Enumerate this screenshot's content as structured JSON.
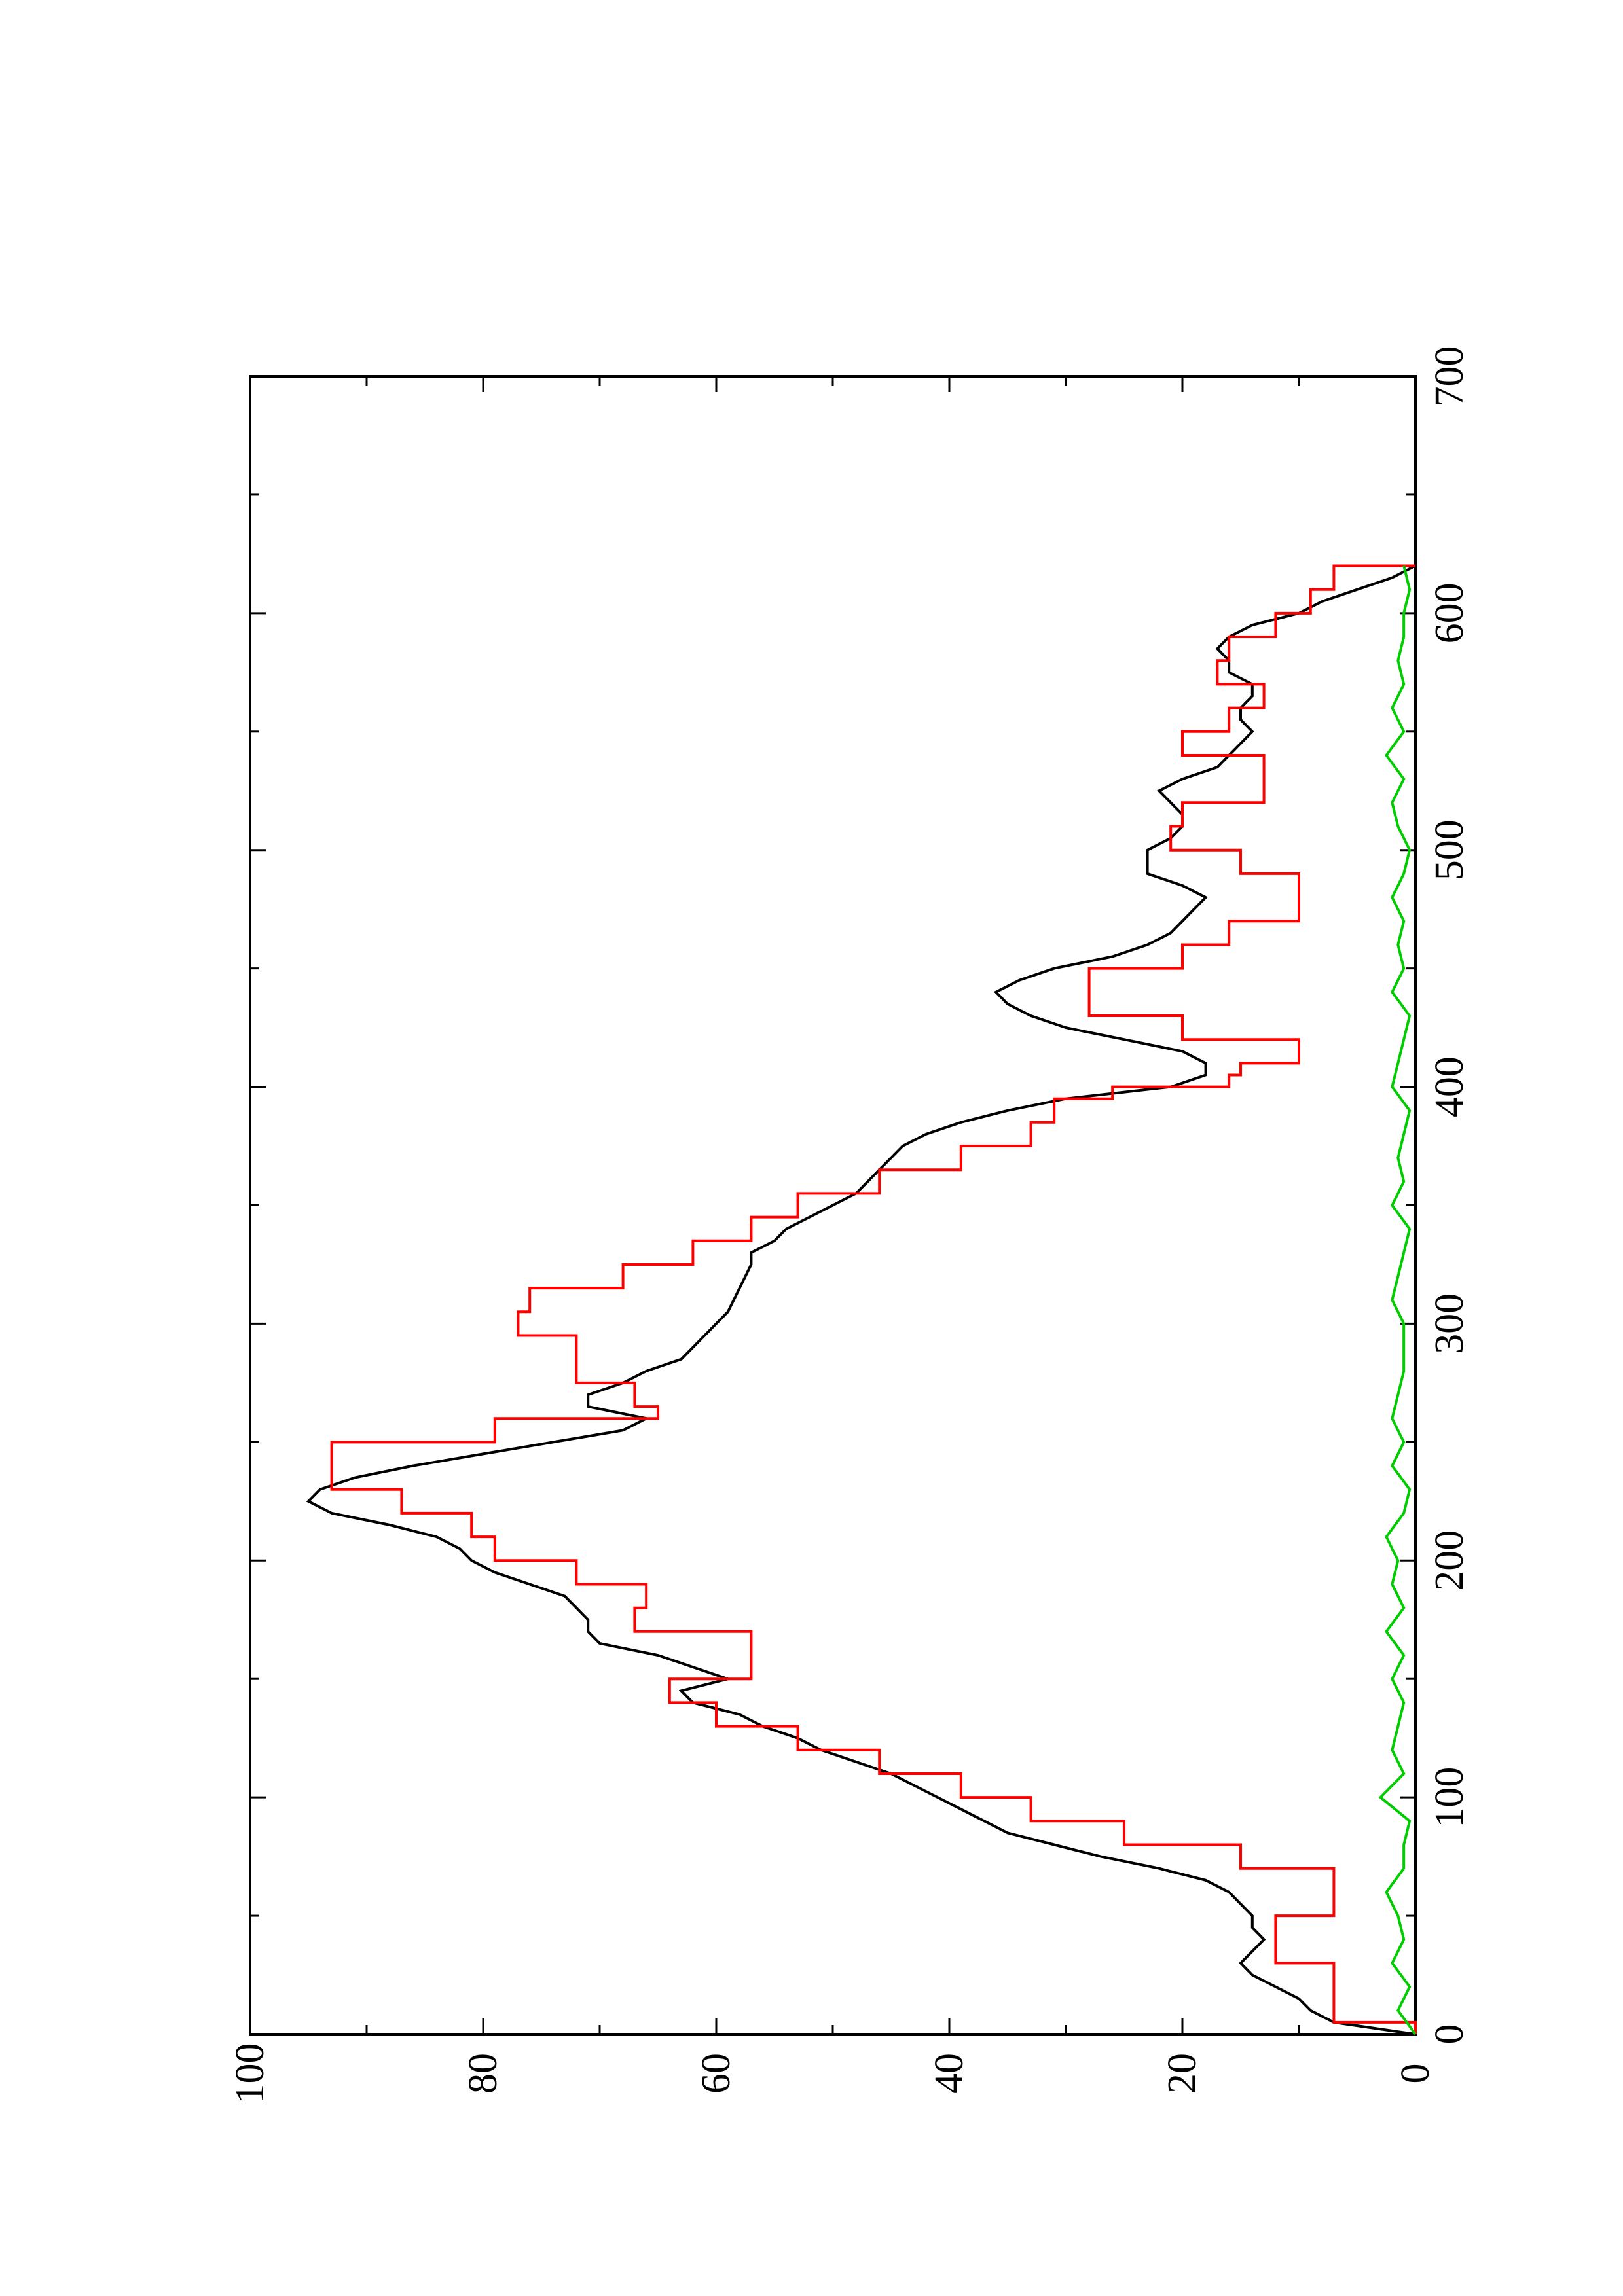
{
  "chart_data": {
    "type": "line",
    "orientation": "rotated-90-counterclockwise",
    "title": "",
    "xlabel": "",
    "ylabel": "",
    "xlim": [
      0,
      700
    ],
    "ylim": [
      0,
      100
    ],
    "x_ticks": [
      0,
      100,
      200,
      300,
      400,
      500,
      600,
      700
    ],
    "x_tick_labels": [
      "0",
      "100",
      "200",
      "300",
      "400",
      "500",
      "600",
      "700"
    ],
    "y_ticks": [
      0,
      20,
      40,
      60,
      80,
      100
    ],
    "y_tick_labels": [
      "0",
      "20",
      "40",
      "60",
      "80",
      "100"
    ],
    "grid": false,
    "legend": "none",
    "series": [
      {
        "color": "#000000",
        "style": "solid",
        "x": [
          0,
          5,
          10,
          15,
          20,
          25,
          30,
          35,
          40,
          45,
          50,
          55,
          60,
          65,
          70,
          75,
          80,
          85,
          90,
          95,
          100,
          105,
          110,
          115,
          120,
          125,
          130,
          135,
          140,
          145,
          150,
          155,
          160,
          165,
          170,
          175,
          180,
          185,
          190,
          195,
          200,
          205,
          210,
          215,
          220,
          225,
          230,
          235,
          240,
          245,
          250,
          255,
          260,
          265,
          270,
          275,
          280,
          285,
          290,
          295,
          300,
          305,
          310,
          315,
          320,
          325,
          330,
          335,
          340,
          345,
          350,
          355,
          360,
          365,
          370,
          375,
          380,
          385,
          390,
          395,
          400,
          405,
          410,
          415,
          420,
          425,
          430,
          435,
          440,
          445,
          450,
          455,
          460,
          465,
          470,
          475,
          480,
          485,
          490,
          495,
          500,
          505,
          510,
          515,
          520,
          525,
          530,
          535,
          540,
          545,
          550,
          555,
          560,
          565,
          570,
          575,
          580,
          585,
          590,
          595,
          600,
          605,
          610,
          615,
          620
        ],
        "y": [
          0,
          7,
          9,
          10,
          12,
          14,
          15,
          14,
          13,
          14,
          14,
          15,
          16,
          18,
          22,
          27,
          31,
          35,
          37,
          39,
          41,
          43,
          45,
          48,
          51,
          53,
          56,
          58,
          62,
          63,
          59,
          62,
          65,
          70,
          71,
          71,
          72,
          73,
          76,
          79,
          81,
          82,
          84,
          88,
          93,
          95,
          94,
          91,
          86,
          80,
          74,
          68,
          66,
          71,
          71,
          68,
          66,
          63,
          62,
          61,
          60,
          59,
          58.5,
          58,
          57.5,
          57,
          57,
          55,
          54,
          52,
          50,
          48,
          47,
          46,
          45,
          44,
          42,
          39,
          35,
          30,
          21,
          18,
          18,
          20,
          25,
          30,
          33,
          35,
          36,
          34,
          31,
          26,
          23,
          21,
          20,
          19,
          18,
          20,
          23,
          23,
          23,
          21,
          20,
          20,
          21,
          22,
          20,
          17,
          16,
          15,
          14,
          15,
          15,
          14,
          14,
          16,
          16,
          17,
          16,
          14,
          10,
          8,
          5,
          2,
          0
        ]
      },
      {
        "color": "#ff0000",
        "style": "step",
        "x": [
          0,
          5,
          20,
          30,
          40,
          50,
          60,
          70,
          80,
          90,
          100,
          110,
          120,
          130,
          140,
          150,
          160,
          170,
          180,
          190,
          200,
          210,
          220,
          230,
          240,
          250,
          260,
          265,
          275,
          280,
          295,
          305,
          315,
          325,
          335,
          345,
          355,
          365,
          375,
          385,
          395,
          400,
          405,
          410,
          420,
          430,
          440,
          450,
          460,
          470,
          480,
          490,
          500,
          510,
          520,
          530,
          540,
          550,
          560,
          570,
          580,
          590,
          600,
          610,
          620
        ],
        "y": [
          0,
          7,
          7,
          12,
          12,
          7,
          7,
          15,
          25,
          33,
          39,
          46,
          53,
          60,
          64,
          57,
          57,
          67,
          66,
          72,
          79,
          81,
          87,
          93,
          93,
          79,
          65,
          67,
          72,
          72,
          77,
          76,
          68,
          62,
          57,
          53,
          46,
          39,
          33,
          31,
          26,
          16,
          15,
          10,
          20,
          28,
          28,
          20,
          16,
          10,
          10,
          15,
          21,
          20,
          13,
          13,
          20,
          16,
          13,
          17,
          16,
          12,
          9,
          7,
          0
        ]
      },
      {
        "color": "#00cc00",
        "style": "solid",
        "x": [
          0,
          10,
          20,
          30,
          40,
          50,
          60,
          70,
          80,
          90,
          100,
          110,
          120,
          130,
          140,
          150,
          160,
          170,
          180,
          190,
          200,
          210,
          220,
          230,
          240,
          250,
          260,
          270,
          280,
          290,
          300,
          310,
          320,
          330,
          340,
          350,
          360,
          370,
          380,
          390,
          400,
          410,
          420,
          430,
          440,
          450,
          460,
          470,
          480,
          490,
          500,
          510,
          520,
          530,
          540,
          550,
          560,
          570,
          580,
          590,
          600,
          610,
          620
        ],
        "y": [
          0,
          1.5,
          0.5,
          2,
          1,
          1.5,
          2.5,
          1,
          1,
          0.5,
          3,
          1,
          2,
          1.5,
          1,
          2,
          1,
          2.5,
          1,
          2,
          1.5,
          2.5,
          1,
          0.5,
          2,
          1,
          2,
          1.5,
          1,
          1,
          1,
          2,
          1.5,
          1,
          0.5,
          2,
          1,
          1.5,
          1,
          0.5,
          2,
          1.5,
          1,
          0.5,
          2,
          1,
          1.5,
          1,
          2,
          1,
          0.5,
          1.5,
          2,
          1,
          2.5,
          1,
          2,
          1,
          1.5,
          1,
          1,
          0.5,
          1
        ]
      }
    ]
  }
}
